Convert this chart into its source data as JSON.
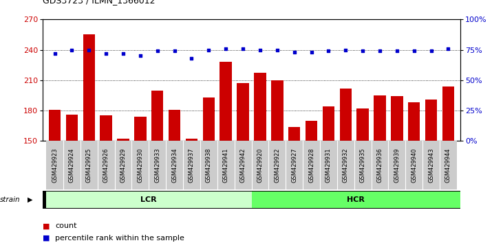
{
  "title": "GDS3723 / ILMN_1366012",
  "categories": [
    "GSM429923",
    "GSM429924",
    "GSM429925",
    "GSM429926",
    "GSM429929",
    "GSM429930",
    "GSM429933",
    "GSM429934",
    "GSM429937",
    "GSM429938",
    "GSM429941",
    "GSM429942",
    "GSM429920",
    "GSM429922",
    "GSM429927",
    "GSM429928",
    "GSM429931",
    "GSM429932",
    "GSM429935",
    "GSM429936",
    "GSM429939",
    "GSM429940",
    "GSM429943",
    "GSM429944"
  ],
  "bar_values": [
    181,
    176,
    255,
    175,
    152,
    174,
    200,
    181,
    152,
    193,
    228,
    207,
    217,
    210,
    164,
    170,
    184,
    202,
    182,
    195,
    194,
    188,
    191,
    204
  ],
  "dot_values": [
    72,
    75,
    75,
    72,
    72,
    70,
    74,
    74,
    68,
    75,
    76,
    76,
    75,
    75,
    73,
    73,
    74,
    75,
    74,
    74,
    74,
    74,
    74,
    76
  ],
  "lcr_count": 12,
  "hcr_count": 12,
  "ylim_left": [
    150,
    270
  ],
  "ylim_right": [
    0,
    100
  ],
  "yticks_left": [
    150,
    180,
    210,
    240,
    270
  ],
  "yticks_right": [
    0,
    25,
    50,
    75,
    100
  ],
  "bar_color": "#cc0000",
  "dot_color": "#0000cc",
  "lcr_color": "#ccffcc",
  "hcr_color": "#66ff66",
  "cell_bg_color": "#cccccc",
  "strain_border_color": "#000000",
  "legend_count_label": "count",
  "legend_pct_label": "percentile rank within the sample"
}
